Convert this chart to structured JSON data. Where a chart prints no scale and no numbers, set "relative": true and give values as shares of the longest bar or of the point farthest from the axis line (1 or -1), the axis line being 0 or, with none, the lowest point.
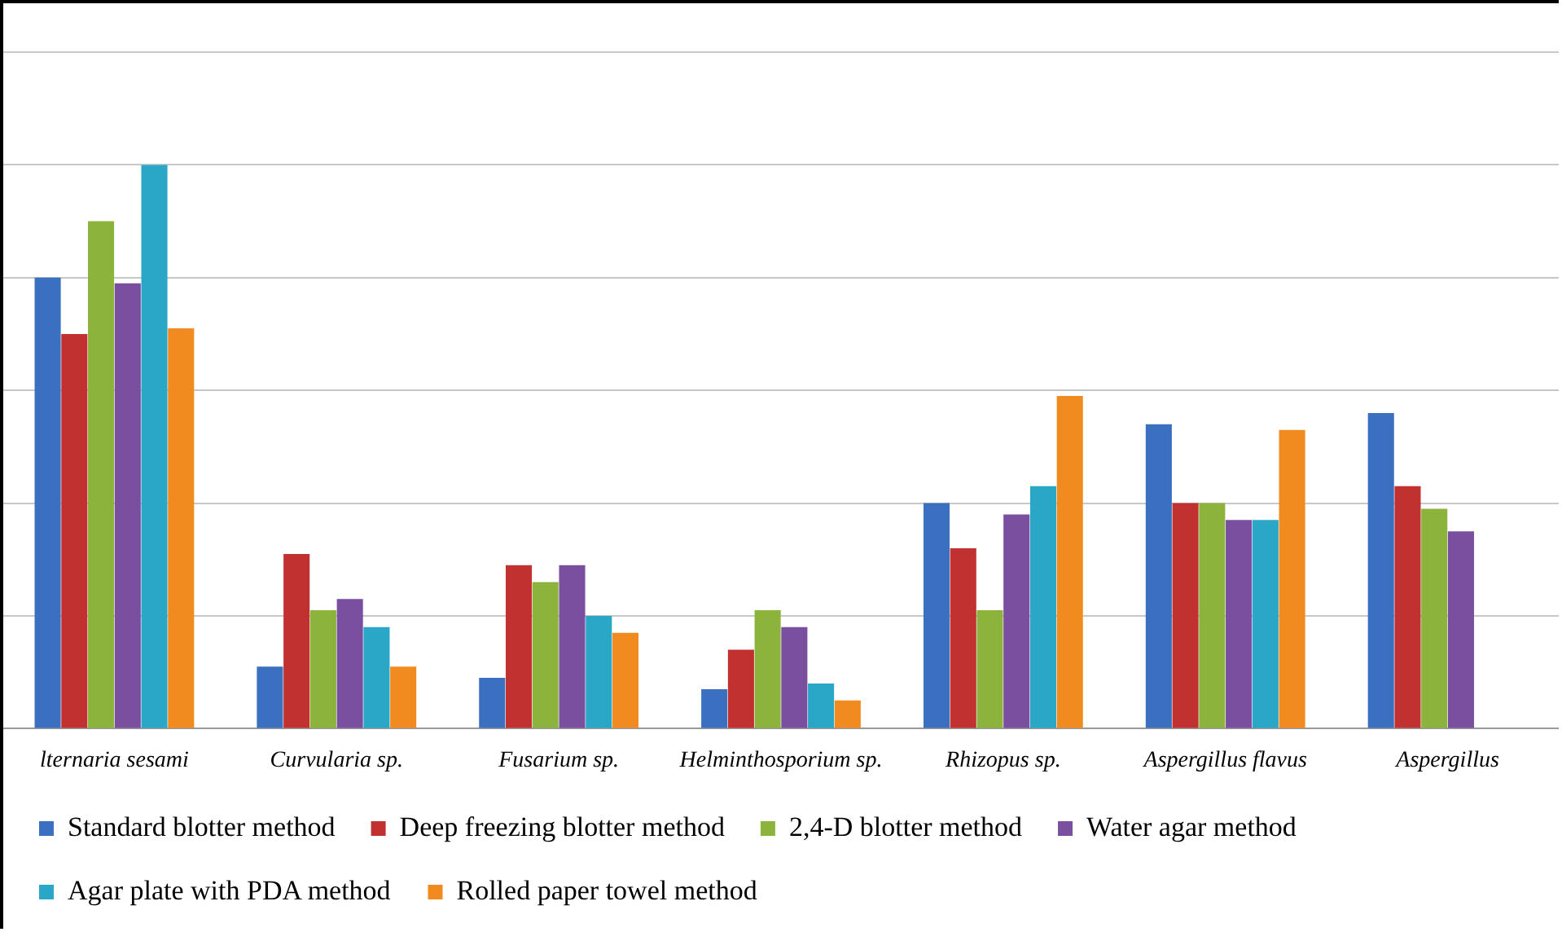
{
  "chart_data": {
    "type": "bar",
    "relative": true,
    "grid": "y",
    "legend": "bottom",
    "categories": [
      "lternaria sesami",
      "Curvularia sp.",
      "Fusarium sp.",
      "Helminthosporium sp.",
      "Rhizopus sp.",
      "Aspergillus flavus",
      "Aspergillus"
    ],
    "series": [
      {
        "name": "Standard blotter method",
        "color": "#3b6fbf",
        "values": [
          0.8,
          0.11,
          0.09,
          0.07,
          0.4,
          0.54,
          0.56
        ]
      },
      {
        "name": "Deep freezing blotter method",
        "color": "#c0312f",
        "values": [
          0.7,
          0.31,
          0.29,
          0.14,
          0.32,
          0.4,
          0.43
        ]
      },
      {
        "name": "2,4-D blotter method",
        "color": "#8cb43c",
        "values": [
          0.9,
          0.21,
          0.26,
          0.21,
          0.21,
          0.4,
          0.39
        ]
      },
      {
        "name": "Water agar method",
        "color": "#7a4f9f",
        "values": [
          0.79,
          0.23,
          0.29,
          0.18,
          0.38,
          0.37,
          0.35
        ]
      },
      {
        "name": "Agar plate with PDA method",
        "color": "#2aa6c6",
        "values": [
          1,
          0.18,
          0.2,
          0.08,
          0.43,
          0.37,
          null
        ]
      },
      {
        "name": "Rolled paper towel method",
        "color": "#f28b1f",
        "values": [
          0.71,
          0.11,
          0.17,
          0.05,
          0.59,
          0.53,
          null
        ]
      }
    ]
  }
}
